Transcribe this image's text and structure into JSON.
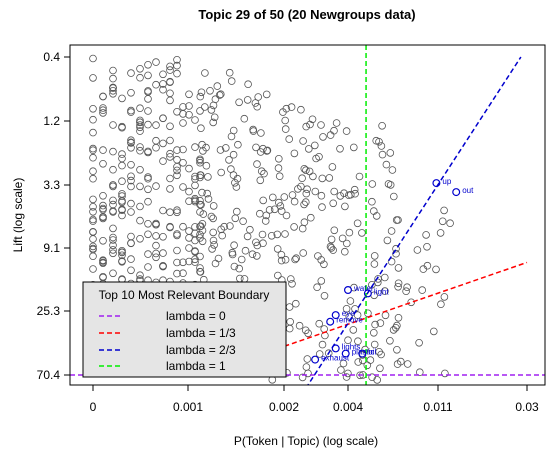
{
  "chart_data": {
    "type": "scatter",
    "title": "Topic 29 of 50 (20 Newgroups data)",
    "xlabel": "P(Token | Topic) (log scale)",
    "ylabel": "Lift (log scale)",
    "x_scale": "log",
    "y_scale": "log",
    "x_tick_labels": [
      "0",
      "0.001",
      "0.002",
      "0.004",
      "0.011",
      "0.03"
    ],
    "y_tick_labels": [
      "0.4",
      "1.2",
      "3.3",
      "9.1",
      "25.3",
      "70.4"
    ],
    "xlim": [
      0,
      0.03
    ],
    "ylim": [
      0.4,
      70.4
    ],
    "highlight_color": "#0000cd",
    "point_color": "#555555",
    "top_terms": [
      {
        "label": "exhaust",
        "x": 0.0028,
        "y": 55
      },
      {
        "label": "plastic",
        "x": 0.0039,
        "y": 50
      },
      {
        "label": "oil",
        "x": 0.0047,
        "y": 50
      },
      {
        "label": "lights",
        "x": 0.0035,
        "y": 46
      },
      {
        "label": "remove",
        "x": 0.0033,
        "y": 30
      },
      {
        "label": "eye",
        "x": 0.0035,
        "y": 27
      },
      {
        "label": "water",
        "x": 0.004,
        "y": 18
      },
      {
        "label": "light",
        "x": 0.005,
        "y": 19
      },
      {
        "label": "up",
        "x": 0.0108,
        "y": 3.2
      },
      {
        "label": "out",
        "x": 0.0135,
        "y": 3.7
      }
    ],
    "legend": {
      "title": "Top 10 Most Relevant Boundary",
      "position": "bottom-left",
      "entries": [
        {
          "label": "lambda = 0",
          "color": "#a020f0"
        },
        {
          "label": "lambda = 1/3",
          "color": "#ff0000"
        },
        {
          "label": "lambda = 2/3",
          "color": "#0000cd"
        },
        {
          "label": "lambda = 1",
          "color": "#00ee00"
        }
      ]
    },
    "boundary_lines": [
      {
        "name": "lambda = 0",
        "color": "#a020f0",
        "kind": "horizontal",
        "y": 70.4
      },
      {
        "name": "lambda = 1/3",
        "color": "#ff0000",
        "kind": "line",
        "x1": 0.0011,
        "y1": 70.4,
        "x2": 0.03,
        "y2": 11.5
      },
      {
        "name": "lambda = 2/3",
        "color": "#0000cd",
        "kind": "line",
        "x1": 0.0022,
        "y1": 120,
        "x2": 0.028,
        "y2": 0.4
      },
      {
        "name": "lambda = 1",
        "color": "#00ee00",
        "kind": "vertical",
        "x": 0.0049
      }
    ]
  }
}
